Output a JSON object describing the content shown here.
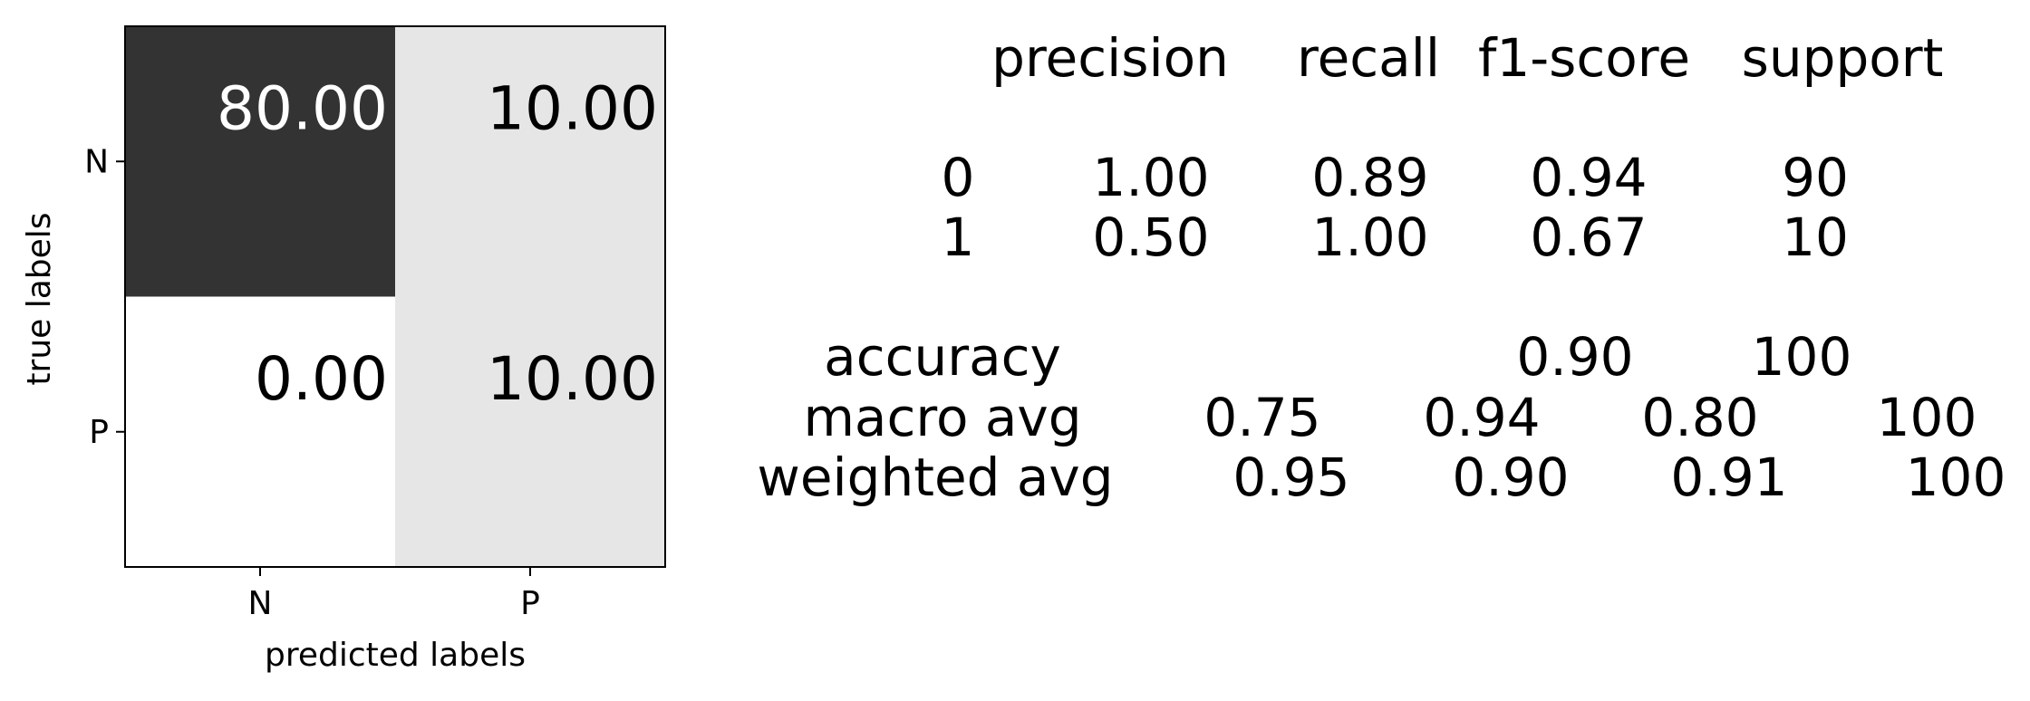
{
  "chart_data": [
    {
      "type": "heatmap",
      "xlabel": "predicted labels",
      "ylabel": "true labels",
      "x_categories": [
        "N",
        "P"
      ],
      "y_categories": [
        "N",
        "P"
      ],
      "values": [
        [
          80.0,
          10.0
        ],
        [
          0.0,
          10.0
        ]
      ],
      "value_labels": [
        [
          "80.00",
          "10.00"
        ],
        [
          "0.00",
          "10.00"
        ]
      ],
      "colormap": "greys",
      "color_range": [
        0,
        80
      ],
      "grid": false,
      "legend": "none"
    },
    {
      "type": "table",
      "columns": [
        "precision",
        "recall",
        "f1-score",
        "support"
      ],
      "class_rows": [
        {
          "label": "0",
          "precision": "1.00",
          "recall": "0.89",
          "f1-score": "0.94",
          "support": "90"
        },
        {
          "label": "1",
          "precision": "0.50",
          "recall": "1.00",
          "f1-score": "0.67",
          "support": "10"
        }
      ],
      "accuracy_row": {
        "label": "accuracy",
        "f1-score": "0.90",
        "support": "100"
      },
      "average_rows": [
        {
          "label": "macro avg",
          "precision": "0.75",
          "recall": "0.94",
          "f1-score": "0.80",
          "support": "100"
        },
        {
          "label": "weighted avg",
          "precision": "0.95",
          "recall": "0.90",
          "f1-score": "0.91",
          "support": "100"
        }
      ]
    }
  ]
}
